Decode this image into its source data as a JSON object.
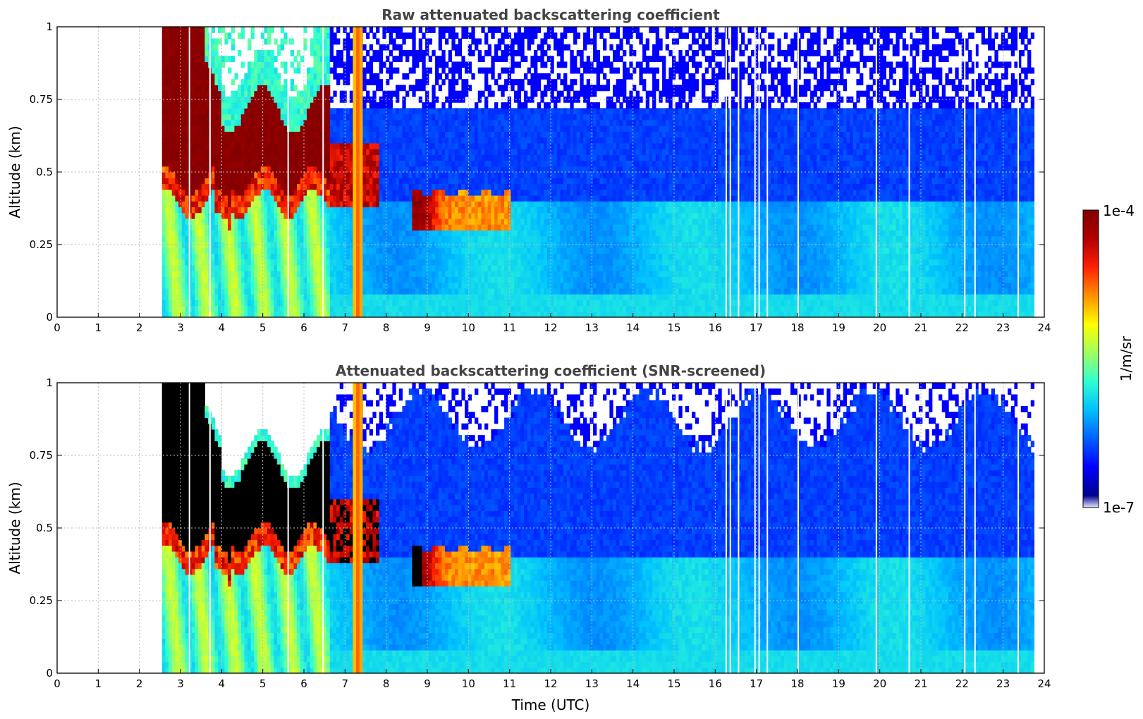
{
  "colors": {
    "jet": [
      "#00008f",
      "#0000ff",
      "#0060ff",
      "#00c0ff",
      "#30ffd0",
      "#a0ff60",
      "#ffff00",
      "#ff9000",
      "#ff2000",
      "#b00000",
      "#800000"
    ],
    "white": "#ffffff",
    "black": "#000000",
    "grid": "#bbbbbb",
    "title": "#444444"
  },
  "colorbar": {
    "max_label": "1e-4",
    "min_label": "1e-7",
    "unit_label": "1/m/sr"
  },
  "chart_data": [
    {
      "type": "heatmap",
      "title": "Raw attenuated backscattering coefficient",
      "xlabel": "",
      "ylabel": "Altitude (km)",
      "xlim": [
        0,
        24
      ],
      "ylim": [
        0,
        1
      ],
      "xticks": [
        "0",
        "1",
        "2",
        "3",
        "4",
        "5",
        "6",
        "7",
        "8",
        "9",
        "10",
        "11",
        "12",
        "13",
        "14",
        "15",
        "16",
        "17",
        "18",
        "19",
        "20",
        "21",
        "22",
        "23",
        "24"
      ],
      "yticks": [
        "0",
        "0.25",
        "0.5",
        "0.75",
        "1"
      ],
      "data_start_utc": 2.55,
      "data_end_utc": 23.7,
      "gap_times_utc": [
        3.2,
        3.7,
        5.6,
        6.45,
        16.25,
        16.35,
        16.55,
        16.95,
        17.05,
        17.25,
        18.0,
        19.9,
        20.7,
        22.05,
        22.3,
        23.35
      ],
      "layers": [
        {
          "name": "boundary layer (near-surface)",
          "t_start": 2.55,
          "t_end": 23.7,
          "alt_low": 0.0,
          "alt_high": 0.45,
          "level": "medium"
        },
        {
          "name": "dense cloud / fog top",
          "t_start": 2.55,
          "t_end": 6.5,
          "alt_low": 0.45,
          "alt_high": 0.9,
          "level": "saturated"
        },
        {
          "name": "plume",
          "t_start": 7.2,
          "t_end": 7.45,
          "alt_low": 0.0,
          "alt_high": 1.0,
          "level": "high"
        },
        {
          "name": "aerosol layer",
          "t_start": 8.6,
          "t_end": 11.0,
          "alt_low": 0.3,
          "alt_high": 0.45,
          "level": "high"
        },
        {
          "name": "free troposphere",
          "t_start": 7.5,
          "t_end": 23.7,
          "alt_low": 0.45,
          "alt_high": 1.0,
          "level": "low"
        }
      ]
    },
    {
      "type": "heatmap",
      "title": "Attenuated backscattering coefficient (SNR-screened)",
      "xlabel": "Time (UTC)",
      "ylabel": "Altitude (km)",
      "xlim": [
        0,
        24
      ],
      "ylim": [
        0,
        1
      ],
      "xticks": [
        "0",
        "1",
        "2",
        "3",
        "4",
        "5",
        "6",
        "7",
        "8",
        "9",
        "10",
        "11",
        "12",
        "13",
        "14",
        "15",
        "16",
        "17",
        "18",
        "19",
        "20",
        "21",
        "22",
        "23",
        "24"
      ],
      "yticks": [
        "0",
        "0.25",
        "0.5",
        "0.75",
        "1"
      ],
      "data_start_utc": 2.55,
      "data_end_utc": 23.7,
      "gap_times_utc": [
        3.2,
        3.7,
        5.6,
        6.45,
        16.25,
        16.35,
        16.55,
        16.95,
        17.05,
        17.25,
        18.0,
        19.9,
        20.7,
        22.05,
        22.3,
        23.35
      ],
      "screened_above_km": 0.85,
      "layers": [
        {
          "name": "boundary layer (near-surface)",
          "t_start": 2.55,
          "t_end": 23.7,
          "alt_low": 0.0,
          "alt_high": 0.45,
          "level": "medium"
        },
        {
          "name": "dense cloud / fog top (saturated, black)",
          "t_start": 2.55,
          "t_end": 6.5,
          "alt_low": 0.45,
          "alt_high": 0.85,
          "level": "saturated"
        },
        {
          "name": "plume",
          "t_start": 7.2,
          "t_end": 7.45,
          "alt_low": 0.0,
          "alt_high": 1.0,
          "level": "high"
        },
        {
          "name": "aerosol layer",
          "t_start": 8.6,
          "t_end": 11.0,
          "alt_low": 0.3,
          "alt_high": 0.45,
          "level": "high"
        },
        {
          "name": "free troposphere",
          "t_start": 7.5,
          "t_end": 23.7,
          "alt_low": 0.45,
          "alt_high": 0.85,
          "level": "low"
        }
      ]
    }
  ]
}
